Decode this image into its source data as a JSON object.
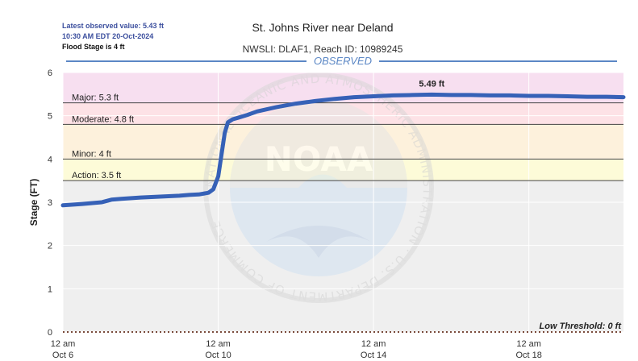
{
  "header": {
    "latest_observed": "Latest observed value: 5.43 ft",
    "latest_time": "10:30 AM EDT 20-Oct-2024",
    "flood_stage": "Flood Stage is 4 ft",
    "title": "St. Johns River near Deland",
    "subtitle": "NWSLI: DLAF1, Reach ID: 10989245",
    "observed_label": "OBSERVED"
  },
  "watermark": {
    "logo_text": "NOAA",
    "ring_text": "NATIONAL OCEANIC AND ATMOSPHERIC ADMINISTRATION · U.S. DEPARTMENT OF COMMERCE"
  },
  "colors": {
    "series": "#3661b7",
    "major_band": "#f7dff0",
    "moderate_band": "#fde2e6",
    "minor_band": "#fdf1dc",
    "action_band": "#fdfbd8",
    "normal_band": "#efefef",
    "observed_rule": "#5b87c5"
  },
  "chart_data": {
    "type": "line",
    "ylabel": "Stage (FT)",
    "ylim": [
      0,
      6
    ],
    "yticks": [
      0,
      1,
      2,
      3,
      4,
      5,
      6
    ],
    "xlim": [
      "2024-10-06 00:00",
      "2024-10-20 10:30"
    ],
    "xticks": [
      {
        "x": "2024-10-06 00:00",
        "line1": "12 am",
        "line2": "Oct 6"
      },
      {
        "x": "2024-10-10 00:00",
        "line1": "12 am",
        "line2": "Oct 10"
      },
      {
        "x": "2024-10-14 00:00",
        "line1": "12 am",
        "line2": "Oct 14"
      },
      {
        "x": "2024-10-18 00:00",
        "line1": "12 am",
        "line2": "Oct 18"
      }
    ],
    "thresholds": [
      {
        "name": "major",
        "label": "Major: 5.3 ft",
        "value": 5.3
      },
      {
        "name": "moderate",
        "label": "Moderate: 4.8 ft",
        "value": 4.8
      },
      {
        "name": "minor",
        "label": "Minor: 4 ft",
        "value": 4.0
      },
      {
        "name": "action",
        "label": "Action: 3.5 ft",
        "value": 3.5
      },
      {
        "name": "low",
        "label": "Low Threshold: 0 ft",
        "value": 0
      }
    ],
    "annotations": [
      {
        "label": "5.49 ft",
        "x": "2024-10-15 12:00",
        "y": 5.49
      }
    ],
    "series": [
      {
        "x": [
          "2024-10-06 00:00",
          "2024-10-06 12:00",
          "2024-10-07 00:00",
          "2024-10-07 06:00",
          "2024-10-07 12:00",
          "2024-10-08 00:00",
          "2024-10-08 12:00",
          "2024-10-09 00:00",
          "2024-10-09 06:00",
          "2024-10-09 12:00",
          "2024-10-09 18:00",
          "2024-10-09 21:00",
          "2024-10-10 00:00",
          "2024-10-10 02:00",
          "2024-10-10 04:00",
          "2024-10-10 06:00",
          "2024-10-10 09:00",
          "2024-10-10 12:00",
          "2024-10-10 18:00",
          "2024-10-11 00:00",
          "2024-10-11 12:00",
          "2024-10-12 00:00",
          "2024-10-12 12:00",
          "2024-10-13 00:00",
          "2024-10-13 12:00",
          "2024-10-14 00:00",
          "2024-10-14 12:00",
          "2024-10-15 00:00",
          "2024-10-15 12:00",
          "2024-10-16 00:00",
          "2024-10-16 12:00",
          "2024-10-17 00:00",
          "2024-10-17 12:00",
          "2024-10-18 00:00",
          "2024-10-18 12:00",
          "2024-10-19 00:00",
          "2024-10-19 12:00",
          "2024-10-20 00:00",
          "2024-10-20 10:30"
        ],
        "y": [
          2.93,
          2.96,
          3.0,
          3.06,
          3.08,
          3.11,
          3.13,
          3.15,
          3.17,
          3.18,
          3.22,
          3.3,
          3.6,
          4.1,
          4.6,
          4.85,
          4.92,
          4.95,
          5.02,
          5.1,
          5.2,
          5.28,
          5.34,
          5.39,
          5.43,
          5.45,
          5.47,
          5.48,
          5.49,
          5.48,
          5.48,
          5.47,
          5.47,
          5.46,
          5.46,
          5.45,
          5.44,
          5.44,
          5.43
        ]
      }
    ]
  }
}
